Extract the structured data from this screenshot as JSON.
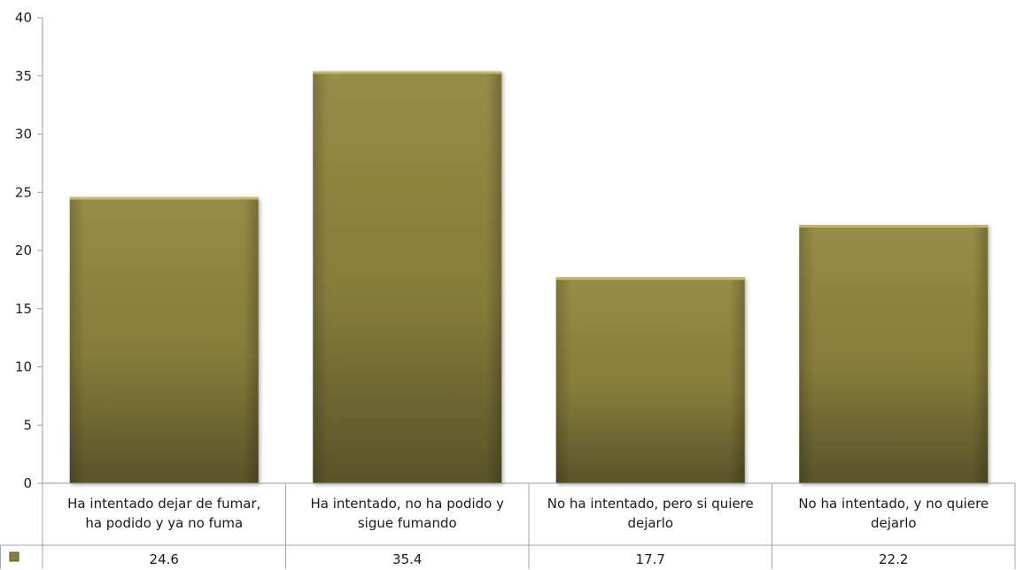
{
  "chart_data": {
    "type": "bar",
    "categories": [
      [
        "Ha intentado dejar de fumar,",
        "ha podido y ya no fuma"
      ],
      [
        "Ha intentado, no ha podido y",
        "sigue fumando"
      ],
      [
        "No ha intentado, pero si quiere",
        "dejarlo"
      ],
      [
        "No ha intentado, y no quiere",
        "dejarlo"
      ]
    ],
    "values": [
      24.6,
      35.4,
      17.7,
      22.2
    ],
    "value_labels": [
      "24.6",
      "35.4",
      "17.7",
      "22.2"
    ],
    "ylim": [
      0,
      40
    ],
    "yticks": [
      0,
      5,
      10,
      15,
      20,
      25,
      30,
      35,
      40
    ],
    "grid": false,
    "legend": "data-table",
    "colors": {
      "bar_light": "#978c48",
      "bar_mid": "#857c3a",
      "bar_dark": "#59532a",
      "bar_top": "#c2b968",
      "axis": "#9a9a9a",
      "table_border": "#a6a6a6",
      "legend_key": "#8a8040"
    }
  }
}
